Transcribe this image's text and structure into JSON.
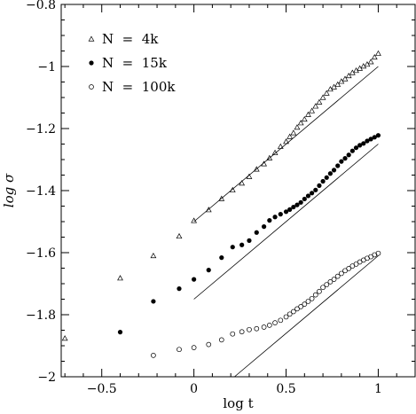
{
  "chart_data": {
    "type": "scatter",
    "xlabel": "log t",
    "ylabel": "log σ",
    "xlim": [
      -0.72,
      1.2
    ],
    "ylim": [
      -2,
      -0.8
    ],
    "xticks": [
      -0.5,
      0,
      0.5,
      1
    ],
    "xtick_labels": [
      "−0.5",
      "0",
      "0.5",
      "1"
    ],
    "yticks": [
      -2,
      -1.8,
      -1.6,
      -1.4,
      -1.2,
      -1,
      -0.8
    ],
    "ytick_labels": [
      "−2",
      "−1.8",
      "−1.6",
      "−1.4",
      "−1.2",
      "−1",
      "−0.8"
    ],
    "legend_position": "top-left",
    "series": [
      {
        "name": "N  =  4k",
        "marker": "triangle-open",
        "x": [
          -0.7,
          -0.4,
          -0.22,
          -0.08,
          0.0,
          0.08,
          0.15,
          0.21,
          0.26,
          0.3,
          0.34,
          0.38,
          0.41,
          0.44,
          0.47,
          0.5,
          0.52,
          0.54,
          0.56,
          0.58,
          0.6,
          0.62,
          0.64,
          0.66,
          0.68,
          0.7,
          0.72,
          0.74,
          0.76,
          0.78,
          0.8,
          0.82,
          0.84,
          0.86,
          0.88,
          0.9,
          0.92,
          0.94,
          0.96,
          0.98,
          1.0
        ],
        "y": [
          -1.876,
          -1.682,
          -1.61,
          -1.547,
          -1.497,
          -1.462,
          -1.426,
          -1.398,
          -1.376,
          -1.355,
          -1.331,
          -1.314,
          -1.295,
          -1.278,
          -1.258,
          -1.242,
          -1.226,
          -1.214,
          -1.196,
          -1.182,
          -1.17,
          -1.155,
          -1.143,
          -1.128,
          -1.115,
          -1.1,
          -1.086,
          -1.073,
          -1.066,
          -1.058,
          -1.048,
          -1.04,
          -1.03,
          -1.02,
          -1.013,
          -1.006,
          -0.999,
          -0.993,
          -0.985,
          -0.97,
          -0.958
        ]
      },
      {
        "name": "N  =  15k",
        "marker": "circle-filled",
        "x": [
          -0.4,
          -0.22,
          -0.08,
          0.0,
          0.08,
          0.15,
          0.21,
          0.26,
          0.3,
          0.34,
          0.38,
          0.41,
          0.44,
          0.47,
          0.5,
          0.52,
          0.54,
          0.56,
          0.58,
          0.6,
          0.62,
          0.64,
          0.66,
          0.68,
          0.7,
          0.72,
          0.74,
          0.76,
          0.78,
          0.8,
          0.82,
          0.84,
          0.86,
          0.88,
          0.9,
          0.92,
          0.94,
          0.96,
          0.98,
          1.0
        ],
        "y": [
          -1.856,
          -1.757,
          -1.716,
          -1.686,
          -1.656,
          -1.616,
          -1.582,
          -1.575,
          -1.561,
          -1.535,
          -1.516,
          -1.496,
          -1.485,
          -1.476,
          -1.468,
          -1.461,
          -1.453,
          -1.446,
          -1.438,
          -1.427,
          -1.417,
          -1.408,
          -1.398,
          -1.384,
          -1.37,
          -1.358,
          -1.345,
          -1.334,
          -1.32,
          -1.306,
          -1.296,
          -1.285,
          -1.272,
          -1.262,
          -1.254,
          -1.248,
          -1.24,
          -1.234,
          -1.228,
          -1.222
        ]
      },
      {
        "name": "N  =  100k",
        "marker": "circle-open",
        "x": [
          -0.22,
          -0.08,
          0.0,
          0.08,
          0.15,
          0.21,
          0.26,
          0.3,
          0.34,
          0.38,
          0.41,
          0.44,
          0.47,
          0.5,
          0.52,
          0.54,
          0.56,
          0.58,
          0.6,
          0.62,
          0.64,
          0.66,
          0.68,
          0.7,
          0.72,
          0.74,
          0.76,
          0.78,
          0.8,
          0.82,
          0.84,
          0.86,
          0.88,
          0.9,
          0.92,
          0.94,
          0.96,
          0.98,
          1.0
        ],
        "y": [
          -1.931,
          -1.912,
          -1.906,
          -1.896,
          -1.881,
          -1.862,
          -1.855,
          -1.848,
          -1.845,
          -1.84,
          -1.834,
          -1.826,
          -1.818,
          -1.807,
          -1.798,
          -1.79,
          -1.781,
          -1.774,
          -1.766,
          -1.757,
          -1.748,
          -1.736,
          -1.725,
          -1.712,
          -1.703,
          -1.694,
          -1.686,
          -1.676,
          -1.667,
          -1.658,
          -1.651,
          -1.643,
          -1.637,
          -1.63,
          -1.624,
          -1.618,
          -1.613,
          -1.607,
          -1.602
        ]
      }
    ],
    "reference_lines": [
      {
        "x": [
          0,
          1
        ],
        "y": [
          -1.5,
          -1.0
        ]
      },
      {
        "x": [
          0,
          1
        ],
        "y": [
          -1.75,
          -1.25
        ]
      },
      {
        "x": [
          0.22,
          1
        ],
        "y": [
          -2.0,
          -1.61
        ]
      }
    ]
  }
}
